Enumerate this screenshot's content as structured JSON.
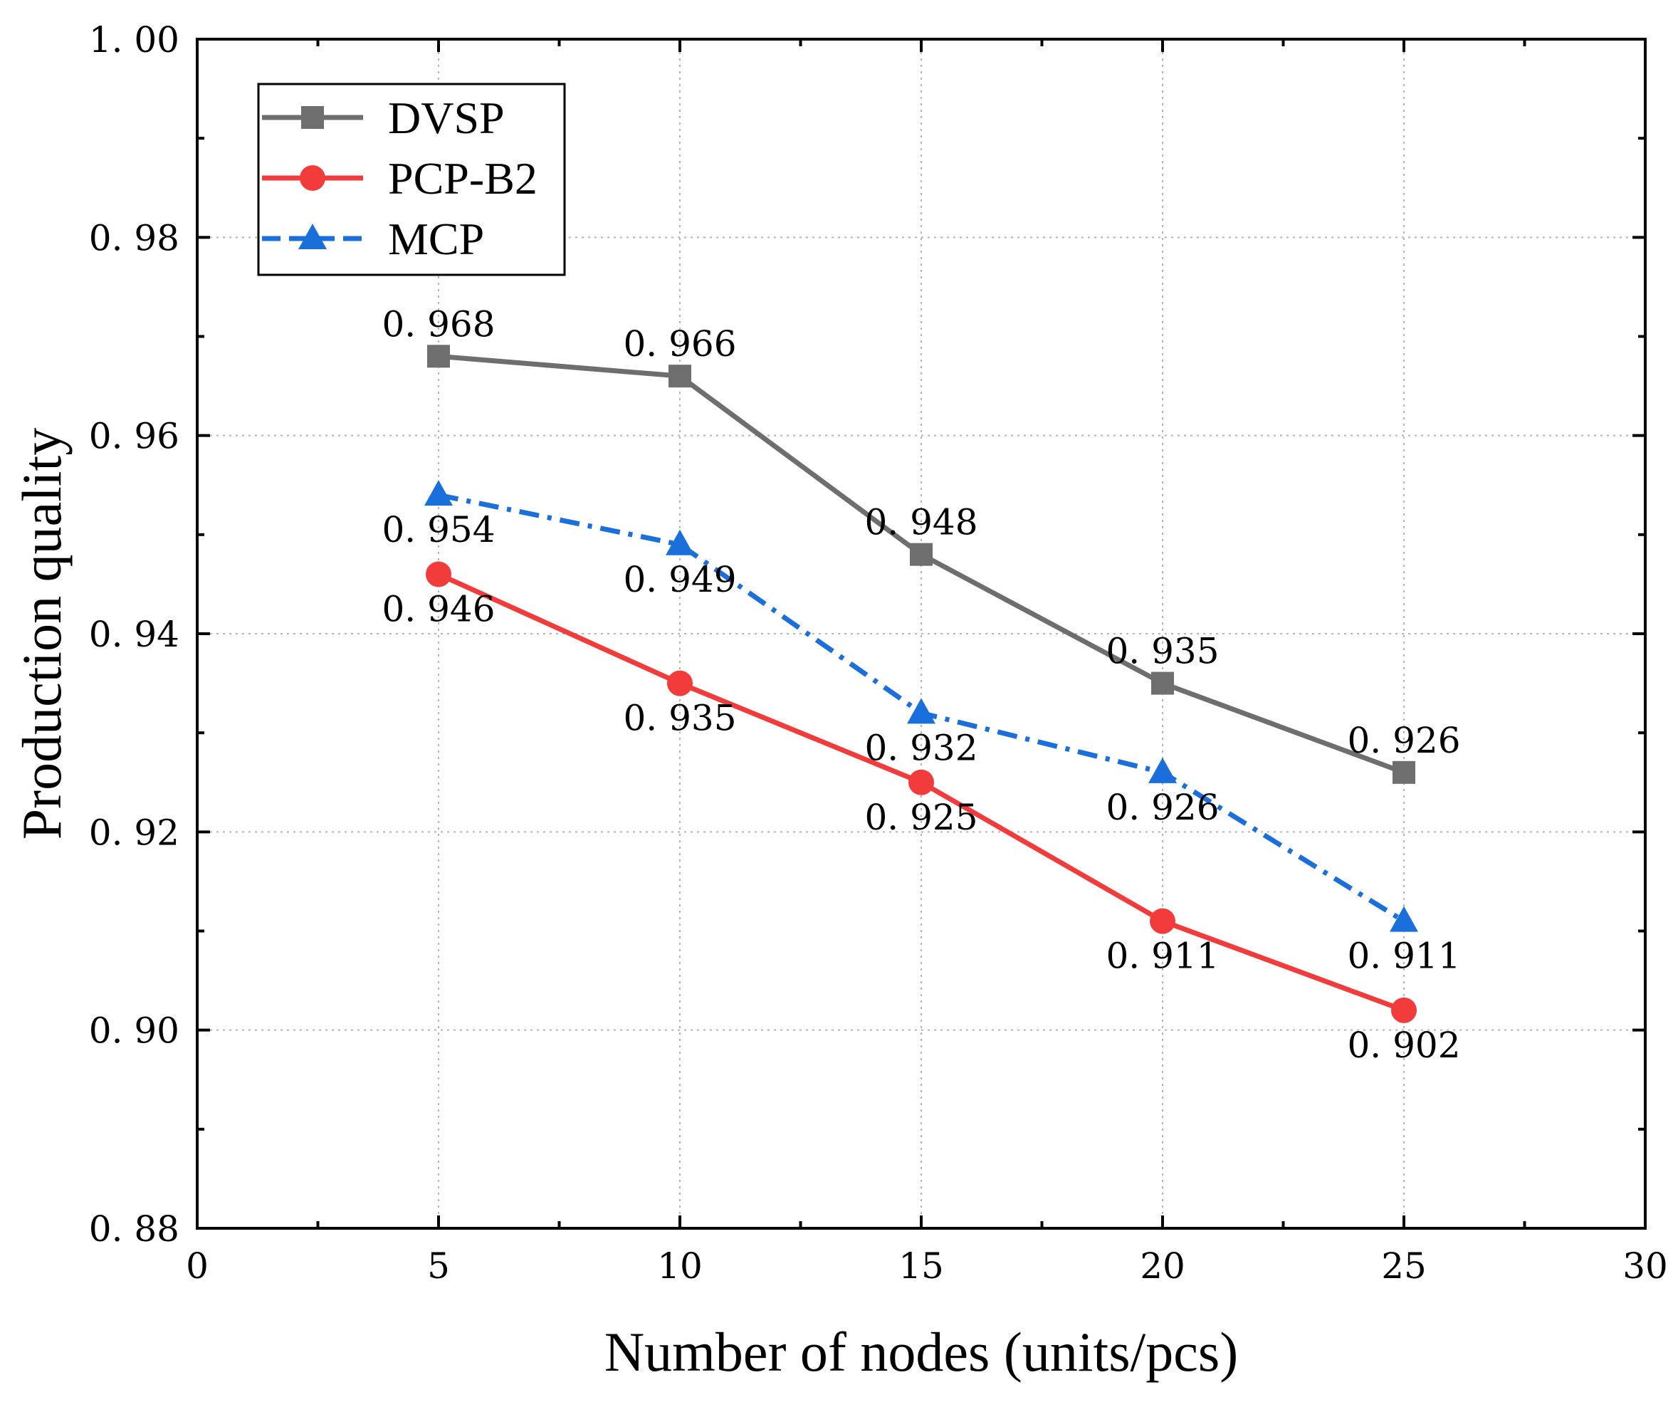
{
  "chart_data": {
    "type": "line",
    "title": "",
    "xlabel": "Number of nodes (units/pcs)",
    "ylabel": "Production quality",
    "xlim": [
      0,
      30
    ],
    "ylim": [
      0.88,
      1.0
    ],
    "x_ticks": [
      0,
      5,
      10,
      15,
      20,
      25,
      30
    ],
    "x_tick_labels": [
      "0",
      "5",
      "10",
      "15",
      "20",
      "25",
      "30"
    ],
    "y_ticks": [
      0.88,
      0.9,
      0.92,
      0.94,
      0.96,
      0.98,
      1.0
    ],
    "y_tick_labels": [
      "0. 88",
      "0. 90",
      "0. 92",
      "0. 94",
      "0. 96",
      "0. 98",
      "1. 00"
    ],
    "grid": true,
    "legend_position": "top-left",
    "x": [
      5,
      10,
      15,
      20,
      25
    ],
    "series": [
      {
        "name": "DVSP",
        "color": "#6e6e6e",
        "marker": "square",
        "line_style": "solid",
        "values": [
          0.968,
          0.966,
          0.948,
          0.935,
          0.926
        ],
        "labels": [
          "0. 968",
          "0. 966",
          "0. 948",
          "0. 935",
          "0. 926"
        ],
        "label_placement": "above"
      },
      {
        "name": "PCP-B2",
        "color": "#f23c3c",
        "marker": "circle",
        "line_style": "solid",
        "values": [
          0.946,
          0.935,
          0.925,
          0.911,
          0.902
        ],
        "labels": [
          "0. 946",
          "0. 935",
          "0. 925",
          "0. 911",
          "0. 902"
        ],
        "label_placement": "below"
      },
      {
        "name": "MCP",
        "color": "#1a6fdb",
        "marker": "triangle",
        "line_style": "dash-dot",
        "values": [
          0.954,
          0.949,
          0.932,
          0.926,
          0.911
        ],
        "labels": [
          "0. 954",
          "0. 949",
          "0. 932",
          "0. 926",
          "0. 911"
        ],
        "label_placement": "below"
      }
    ]
  }
}
